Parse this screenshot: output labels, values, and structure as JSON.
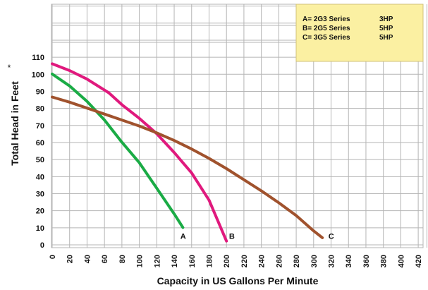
{
  "chart_data": {
    "type": "line",
    "xlabel": "Capacity in US Gallons Per Minute",
    "ylabel": "Total Head in Feet",
    "ylabel_mark": "*",
    "xlim": [
      0,
      430
    ],
    "ylim": [
      0,
      110
    ],
    "x_ticks": [
      0,
      20,
      40,
      60,
      80,
      100,
      120,
      140,
      160,
      180,
      200,
      220,
      240,
      260,
      280,
      300,
      320,
      340,
      360,
      380,
      400,
      420
    ],
    "y_ticks": [
      0,
      10,
      20,
      30,
      40,
      50,
      60,
      70,
      80,
      90,
      100,
      110
    ],
    "grid": true,
    "legend": {
      "placement": "top-right",
      "entries": [
        {
          "label": "A= 2G3 Series",
          "hp": "3HP"
        },
        {
          "label": "B= 2G5 Series",
          "hp": "5HP"
        },
        {
          "label": "C= 3G5 Series",
          "hp": "5HP"
        }
      ]
    },
    "series": [
      {
        "name": "A",
        "color": "#1aab45",
        "x": [
          0,
          20,
          40,
          60,
          80,
          100,
          120,
          140,
          150
        ],
        "y": [
          101,
          94,
          85,
          74,
          61,
          49,
          34,
          19,
          11
        ]
      },
      {
        "name": "B",
        "color": "#e0197d",
        "x": [
          0,
          20,
          40,
          65,
          80,
          100,
          120,
          140,
          160,
          180,
          200
        ],
        "y": [
          107,
          103,
          98,
          90,
          83,
          75,
          66,
          55,
          43,
          27,
          3
        ]
      },
      {
        "name": "C",
        "color": "#a0522d",
        "x": [
          0,
          20,
          40,
          60,
          80,
          100,
          120,
          140,
          160,
          180,
          200,
          220,
          240,
          260,
          280,
          300,
          310
        ],
        "y": [
          87.5,
          84.5,
          81,
          77.5,
          74,
          70.5,
          66.5,
          62,
          57,
          51.5,
          45.5,
          39,
          32.5,
          25.5,
          18,
          9,
          5
        ]
      }
    ],
    "curve_labels": [
      {
        "text": "A",
        "x": 147,
        "y": 3
      },
      {
        "text": "B",
        "x": 203,
        "y": 3
      },
      {
        "text": "C",
        "x": 317,
        "y": 3
      }
    ]
  },
  "colors": {
    "grid": "#b5b5b5",
    "legend_bg": "#fbf0a2",
    "legend_border": "#d2c27a"
  }
}
